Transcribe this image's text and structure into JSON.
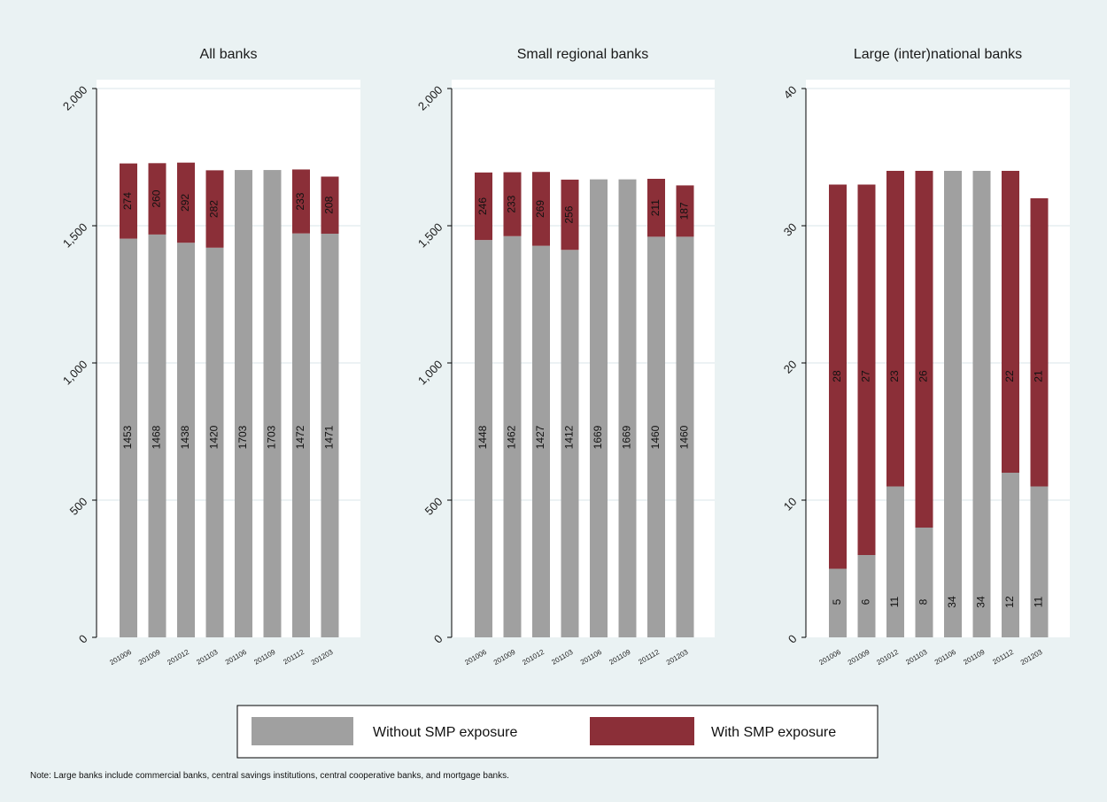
{
  "colors": {
    "without": "#a0a0a0",
    "with": "#8b2f38",
    "plot_bg": "#ffffff",
    "page_bg": "#eaf2f3",
    "grid": "#e6eef0"
  },
  "legend": {
    "without_label": "Without SMP exposure",
    "with_label": "With SMP exposure",
    "position": "bottom"
  },
  "note": "Note: Large banks include commercial banks, central savings institutions, central cooperative banks, and mortgage banks.",
  "chart_data": [
    {
      "type": "bar",
      "stacked": true,
      "title": "All banks",
      "categories": [
        "201006",
        "201009",
        "201012",
        "201103",
        "201106",
        "201109",
        "201112",
        "201203"
      ],
      "ylim": [
        0,
        2000
      ],
      "yticks": [
        0,
        500,
        1000,
        1500,
        2000
      ],
      "ytick_labels": [
        "0",
        "500",
        "1,000",
        "1,500",
        "2,000"
      ],
      "grid": true,
      "series": [
        {
          "name": "Without SMP exposure",
          "values": [
            1453,
            1468,
            1438,
            1420,
            1703,
            1703,
            1472,
            1471
          ],
          "labels": [
            "1453",
            "1468",
            "1438",
            "1420",
            "1703",
            "1703",
            "1472",
            "1471"
          ]
        },
        {
          "name": "With SMP exposure",
          "values": [
            274,
            260,
            292,
            282,
            0,
            0,
            233,
            208
          ],
          "labels": [
            "274",
            "260",
            "292",
            "282",
            "",
            "",
            "233",
            "208"
          ]
        }
      ]
    },
    {
      "type": "bar",
      "stacked": true,
      "title": "Small regional banks",
      "categories": [
        "201006",
        "201009",
        "201012",
        "201103",
        "201106",
        "201109",
        "201112",
        "201203"
      ],
      "ylim": [
        0,
        2000
      ],
      "yticks": [
        0,
        500,
        1000,
        1500,
        2000
      ],
      "ytick_labels": [
        "0",
        "500",
        "1,000",
        "1,500",
        "2,000"
      ],
      "grid": true,
      "series": [
        {
          "name": "Without SMP exposure",
          "values": [
            1448,
            1462,
            1427,
            1412,
            1669,
            1669,
            1460,
            1460
          ],
          "labels": [
            "1448",
            "1462",
            "1427",
            "1412",
            "1669",
            "1669",
            "1460",
            "1460"
          ]
        },
        {
          "name": "With SMP exposure",
          "values": [
            246,
            233,
            269,
            256,
            0,
            0,
            211,
            187
          ],
          "labels": [
            "246",
            "233",
            "269",
            "256",
            "",
            "",
            "211",
            "187"
          ]
        }
      ]
    },
    {
      "type": "bar",
      "stacked": true,
      "title": "Large (inter)national banks",
      "categories": [
        "201006",
        "201009",
        "201012",
        "201103",
        "201106",
        "201109",
        "201112",
        "201203"
      ],
      "ylim": [
        0,
        40
      ],
      "yticks": [
        0,
        10,
        20,
        30,
        40
      ],
      "ytick_labels": [
        "0",
        "10",
        "20",
        "30",
        "40"
      ],
      "grid": true,
      "series": [
        {
          "name": "Without SMP exposure",
          "values": [
            5,
            6,
            11,
            8,
            34,
            34,
            12,
            11
          ],
          "labels": [
            "5",
            "6",
            "11",
            "8",
            "34",
            "34",
            "12",
            "11"
          ]
        },
        {
          "name": "With SMP exposure",
          "values": [
            28,
            27,
            23,
            26,
            0,
            0,
            22,
            21
          ],
          "labels": [
            "28",
            "27",
            "23",
            "26",
            "",
            "",
            "22",
            "21"
          ]
        }
      ]
    }
  ]
}
